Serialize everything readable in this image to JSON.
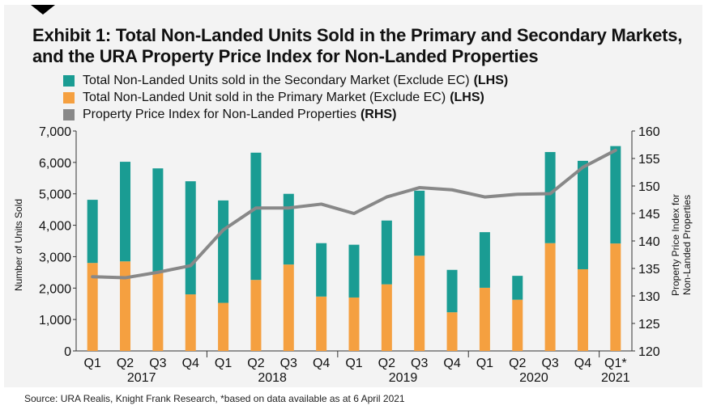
{
  "title": "Exhibit 1: Total Non-Landed Units Sold in the Primary and Secondary Markets, and the URA Property Price Index for Non-Landed Properties",
  "source": "Source: URA Realis, Knight Frank Research, *based on data available as at 6 April 2021",
  "colors": {
    "secondary": "#1a9c93",
    "primary": "#f5a040",
    "index": "#888888"
  },
  "legend": [
    {
      "label": "Total Non-Landed Units sold in the Secondary Market (Exclude EC)",
      "suffix": "(LHS)",
      "color": "#1a9c93"
    },
    {
      "label": "Total Non-Landed Unit sold in the Primary Market (Exclude EC)",
      "suffix": "(LHS)",
      "color": "#f5a040"
    },
    {
      "label": "Property Price Index for Non-Landed Properties",
      "suffix": "(RHS)",
      "color": "#888888"
    }
  ],
  "chart_data": {
    "type": "bar",
    "stacked": true,
    "categories": [
      "Q1",
      "Q2",
      "Q3",
      "Q4",
      "Q1",
      "Q2",
      "Q3",
      "Q4",
      "Q1",
      "Q2",
      "Q3",
      "Q4",
      "Q1",
      "Q2",
      "Q3",
      "Q4",
      "Q1*"
    ],
    "years": [
      {
        "label": "2017",
        "span": [
          0,
          3
        ]
      },
      {
        "label": "2018",
        "span": [
          4,
          7
        ]
      },
      {
        "label": "2019",
        "span": [
          8,
          11
        ]
      },
      {
        "label": "2020",
        "span": [
          12,
          15
        ]
      },
      {
        "label": "2021",
        "span": [
          16,
          16
        ]
      }
    ],
    "series": [
      {
        "name": "Total Non-Landed Unit sold in the Primary Market (Exclude EC)",
        "axis": "left",
        "type": "bar",
        "values": [
          2800,
          2850,
          2500,
          1800,
          1530,
          2260,
          2750,
          1730,
          1700,
          2120,
          3030,
          1230,
          2010,
          1630,
          3430,
          2600,
          3420
        ]
      },
      {
        "name": "Total Non-Landed Units sold in the Secondary Market (Exclude EC)",
        "axis": "left",
        "type": "bar",
        "values": [
          2010,
          3170,
          3310,
          3600,
          3260,
          4050,
          2250,
          1700,
          1680,
          2030,
          2070,
          1350,
          1770,
          760,
          2900,
          3450,
          3100
        ]
      },
      {
        "name": "Property Price Index for Non-Landed Properties",
        "axis": "right",
        "type": "line",
        "values": [
          133.5,
          133.3,
          134.3,
          135.5,
          142,
          146,
          146,
          146.7,
          145,
          148,
          149.7,
          149.3,
          148,
          148.5,
          148.6,
          153.4,
          156.5
        ]
      }
    ],
    "ylabel": "Number of Units Sold",
    "ylabel_right": "Property Price Index for Non-Landed Properties",
    "ylim": [
      0,
      7000
    ],
    "yticks": [
      "0",
      "1,000",
      "2,000",
      "3,000",
      "4,000",
      "5,000",
      "6,000",
      "7,000"
    ],
    "ylim_right": [
      120,
      160
    ],
    "yticks_right": [
      "120",
      "125",
      "130",
      "135",
      "140",
      "145",
      "150",
      "155",
      "160"
    ],
    "grid": false
  }
}
